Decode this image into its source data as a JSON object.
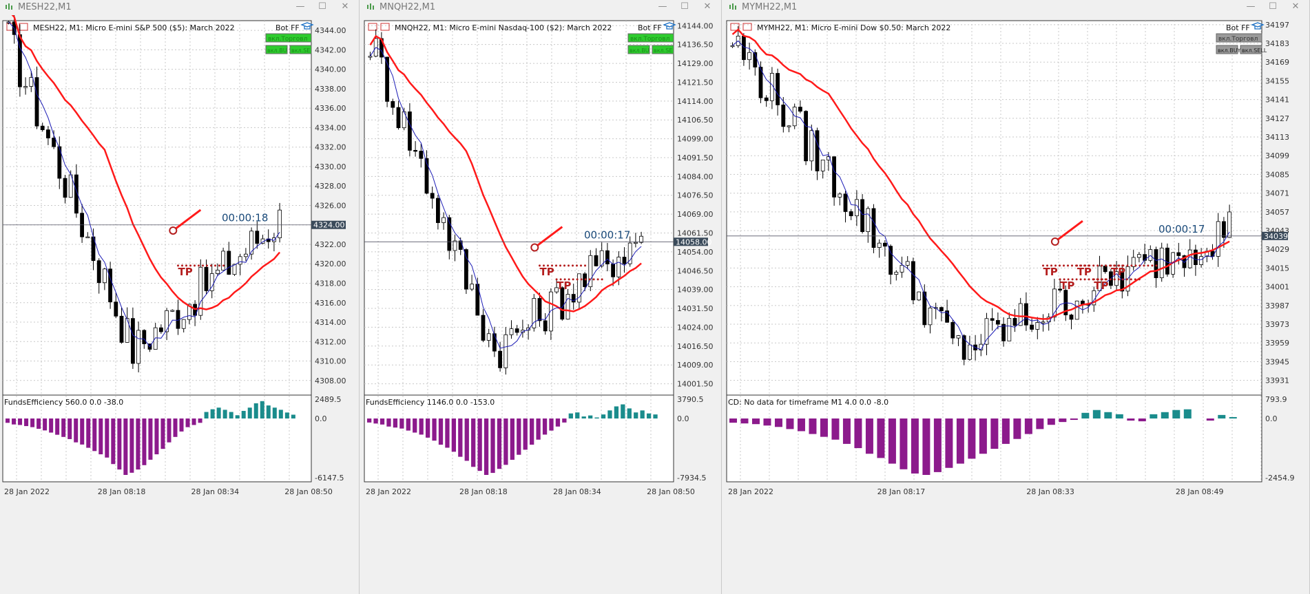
{
  "colors": {
    "ma_slow": "#ff1a1a",
    "ma_fast": "#1a1ab5",
    "hist_pos": "#1a8c8c",
    "hist_neg": "#8c1a8c",
    "grid": "#c8c8c8",
    "tp": "#b41e1e",
    "btn_green": "#2ecc2e"
  },
  "windows": [
    {
      "title": "MESH22,M1",
      "chart_header": "MESH22, M1:  Micro E-mini S&P 500 ($5): March 2022",
      "bot_label": "Bot FF",
      "btn_main": "вкл.Торговл",
      "btn_buy": "вкл.BU",
      "btn_sell": "вкл.SE",
      "btn_active": true,
      "timer": "00:00:18",
      "current_price": "4324.00",
      "price_labels": [
        "4344.00",
        "4342.00",
        "4340.00",
        "4338.00",
        "4336.00",
        "4334.00",
        "4332.00",
        "4330.00",
        "4328.00",
        "4326.00",
        "4324.00",
        "4322.00",
        "4320.00",
        "4318.00",
        "4316.00",
        "4314.00",
        "4312.00",
        "4310.00",
        "4308.00"
      ],
      "ind_label": "FundsEfficiency 560.0 0.0 -38.0",
      "ind_scale": [
        "2489.5",
        "0.0",
        "-6147.5"
      ],
      "time_labels": [
        "28 Jan 2022",
        "28 Jan 08:18",
        "28 Jan 08:34",
        "28 Jan 08:50"
      ],
      "tp_labels": [
        "TP"
      ],
      "chart_data": {
        "type": "candlestick",
        "ymin": 4306.5,
        "ymax": 4345,
        "current": 4324,
        "x_ticks": [
          "28 Jan 2022",
          "28 Jan 08:18",
          "28 Jan 08:34",
          "28 Jan 08:50"
        ],
        "hist_values": [
          -40,
          -55,
          -60,
          -70,
          -80,
          -95,
          -110,
          -130,
          -150,
          -170,
          -190,
          -220,
          -240,
          -270,
          -300,
          -330,
          -360,
          -420,
          -470,
          -520,
          -500,
          -470,
          -430,
          -380,
          -330,
          -280,
          -220,
          -170,
          -120,
          -80,
          -60,
          -40,
          60,
          85,
          100,
          80,
          60,
          30,
          70,
          100,
          140,
          160,
          120,
          100,
          80,
          55,
          35
        ]
      }
    },
    {
      "title": "MNQH22,M1",
      "chart_header": "MNQH22, M1:  Micro E-mini Nasdaq-100 ($2): March 2022",
      "bot_label": "Bot FF",
      "btn_main": "вкл.Торговл",
      "btn_buy": "вкл.BU",
      "btn_sell": "вкл.SE",
      "btn_active": true,
      "timer": "00:00:17",
      "current_price": "14058.00",
      "price_labels": [
        "14144.00",
        "14136.50",
        "14129.00",
        "14121.50",
        "14114.00",
        "14106.50",
        "14099.00",
        "14091.50",
        "14084.00",
        "14076.50",
        "14069.00",
        "14061.50",
        "14054.00",
        "14046.50",
        "14039.00",
        "14031.50",
        "14024.00",
        "14016.50",
        "14009.00",
        "14001.50"
      ],
      "ind_label": "FundsEfficiency 1146.0 0.0 -153.0",
      "ind_scale": [
        "3790.5",
        "0.0",
        "-7934.5"
      ],
      "time_labels": [
        "28 Jan 2022",
        "28 Jan 08:18",
        "28 Jan 08:34",
        "28 Jan 08:50"
      ],
      "tp_labels": [
        "TP",
        "TP"
      ],
      "chart_data": {
        "type": "candlestick",
        "ymin": 13997,
        "ymax": 14146,
        "current": 14058,
        "x_ticks": [
          "28 Jan 2022",
          "28 Jan 08:18",
          "28 Jan 08:34",
          "28 Jan 08:50"
        ],
        "hist_values": [
          -40,
          -50,
          -60,
          -80,
          -90,
          -100,
          -120,
          -140,
          -160,
          -190,
          -220,
          -260,
          -290,
          -330,
          -380,
          -420,
          -480,
          -520,
          -560,
          -540,
          -500,
          -460,
          -410,
          -360,
          -310,
          -260,
          -210,
          -160,
          -120,
          -80,
          -40,
          50,
          60,
          20,
          30,
          10,
          40,
          80,
          120,
          140,
          100,
          60,
          80,
          50,
          40
        ]
      }
    },
    {
      "title": "MYMH22,M1",
      "chart_header": "MYMH22, M1:  Micro E-mini Dow $0.50: March 2022",
      "bot_label": "Bot FF",
      "btn_main": "вкл.Торговл",
      "btn_buy": "вкл.BUY",
      "btn_sell": "вкл.SELL",
      "btn_active": false,
      "timer": "00:00:17",
      "current_price": "34039",
      "price_labels": [
        "34197",
        "34183",
        "34169",
        "34155",
        "34141",
        "34127",
        "34113",
        "34099",
        "34085",
        "34071",
        "34057",
        "34043",
        "34029",
        "34015",
        "34001",
        "33987",
        "33973",
        "33959",
        "33945",
        "33931"
      ],
      "ind_label": "CD: No data for timeframe M1 4.0 0.0 -8.0",
      "ind_scale": [
        "793.9",
        "0.0",
        "-2454.9"
      ],
      "time_labels": [
        "28 Jan 2022",
        "28 Jan 08:17",
        "28 Jan 08:33",
        "28 Jan 08:49"
      ],
      "tp_labels": [
        "TP",
        "TP",
        "TP",
        "TP",
        "TP"
      ],
      "chart_data": {
        "type": "candlestick",
        "ymin": 33920,
        "ymax": 34200,
        "current": 34039,
        "x_ticks": [
          "28 Jan 2022",
          "28 Jan 08:17",
          "28 Jan 08:33",
          "28 Jan 08:49"
        ],
        "hist_values": [
          -60,
          -70,
          -80,
          -100,
          -120,
          -150,
          -180,
          -220,
          -260,
          -300,
          -360,
          -420,
          -500,
          -560,
          -640,
          -720,
          -780,
          -800,
          -760,
          -700,
          -640,
          -570,
          -500,
          -430,
          -360,
          -290,
          -220,
          -150,
          -90,
          -50,
          -20,
          80,
          120,
          90,
          60,
          -30,
          -40,
          60,
          90,
          120,
          130,
          0,
          -30,
          50,
          20
        ]
      }
    }
  ]
}
